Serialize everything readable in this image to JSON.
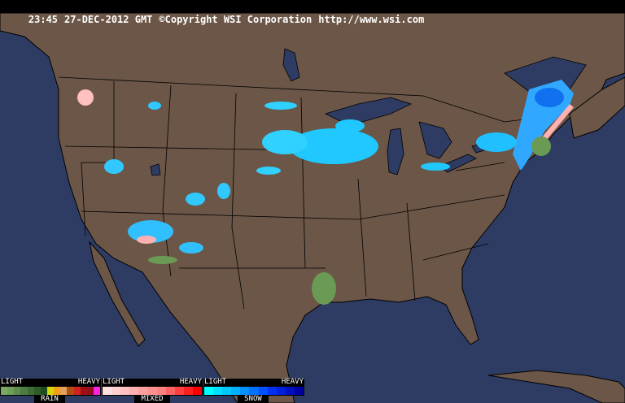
{
  "header": {
    "time": "23:45",
    "date": "27-DEC-2012 GMT",
    "copyright": "©Copyright WSI Corporation",
    "url": "http://www.wsi.com"
  },
  "colors": {
    "ocean": "#2e3c64",
    "land": "#6b5647",
    "borders": "#000000"
  },
  "legend": [
    {
      "type": "RAIN",
      "light": "LIGHT",
      "heavy": "HEAVY",
      "colors": [
        "#7aa864",
        "#6e9e5a",
        "#5e8c4c",
        "#4e7c40",
        "#3e6c34",
        "#2e5c28",
        "#1e4c1c",
        "#d4d40a",
        "#f0a010",
        "#e0a060",
        "#b05010",
        "#d02020",
        "#a01010",
        "#901020",
        "#ff20e0"
      ]
    },
    {
      "type": "MIXED",
      "light": "LIGHT",
      "heavy": "HEAVY",
      "colors": [
        "#ffe0e0",
        "#ffd0d0",
        "#ffc0c0",
        "#ffb0b0",
        "#ffa0a0",
        "#ff9090",
        "#ff8080",
        "#ff6060",
        "#ff4040",
        "#ff2020",
        "#ff0000"
      ]
    },
    {
      "type": "SNOW",
      "light": "LIGHT",
      "heavy": "HEAVY",
      "colors": [
        "#00ffff",
        "#00e0ff",
        "#00c8ff",
        "#00b0ff",
        "#0090ff",
        "#0070ff",
        "#0050ff",
        "#0030f0",
        "#0020e0",
        "#0010c0",
        "#0000a0"
      ]
    }
  ]
}
